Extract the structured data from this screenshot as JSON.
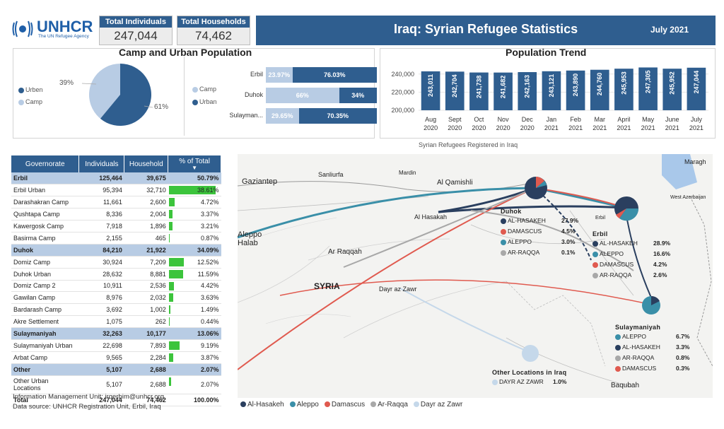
{
  "header": {
    "logo_text": "UNHCR",
    "logo_sub": "The UN Refugee Agency",
    "kpi": [
      {
        "label": "Total Individuals",
        "value": "247,044"
      },
      {
        "label": "Total Households",
        "value": "74,462"
      }
    ],
    "title": "Iraq: Syrian Refugee Statistics",
    "date": "July 2021"
  },
  "camp_urban": {
    "title": "Camp and Urban Population",
    "legend": [
      {
        "label": "Urben",
        "color": "#2f5e8f"
      },
      {
        "label": "Camp",
        "color": "#b8cce4"
      }
    ],
    "pie": {
      "camp_pct": 39,
      "urban_pct": 61,
      "camp_label": "39%",
      "urban_label": "61%"
    },
    "bars_legend": [
      {
        "label": "Camp",
        "color": "#b8cce4"
      },
      {
        "label": "Urban",
        "color": "#2f5e8f"
      }
    ],
    "bars": [
      {
        "name": "Erbil",
        "camp": 23.97,
        "urban": 76.03,
        "camp_label": "23.97%",
        "urban_label": "76.03%"
      },
      {
        "name": "Duhok",
        "camp": 66,
        "urban": 34,
        "camp_label": "66%",
        "urban_label": "34%"
      },
      {
        "name": "Sulayman...",
        "camp": 29.65,
        "urban": 70.35,
        "camp_label": "29.65%",
        "urban_label": "70.35%"
      }
    ]
  },
  "chart_data": {
    "type": "bar",
    "title": "Population Trend",
    "xlabel": "",
    "ylabel": "",
    "ylim": [
      200000,
      250000
    ],
    "yticks": [
      "200,000",
      "220,000",
      "240,000"
    ],
    "categories": [
      [
        "Aug",
        "2020"
      ],
      [
        "Sept",
        "2020"
      ],
      [
        "Oct",
        "2020"
      ],
      [
        "Nov",
        "2020"
      ],
      [
        "Dec",
        "2020"
      ],
      [
        "Jan",
        "2021"
      ],
      [
        "Feb",
        "2021"
      ],
      [
        "Mar",
        "2021"
      ],
      [
        "April",
        "2021"
      ],
      [
        "May",
        "2021"
      ],
      [
        "June",
        "2021"
      ],
      [
        "July",
        "2021"
      ]
    ],
    "values": [
      243011,
      242704,
      241738,
      241682,
      242163,
      243121,
      243890,
      244760,
      245953,
      247305,
      245952,
      247044
    ],
    "value_labels": [
      "243,011",
      "242,704",
      "241,738",
      "241,682",
      "242,163",
      "243,121",
      "243,890",
      "244,760",
      "245,953",
      "247,305",
      "245,952",
      "247,044"
    ],
    "color": "#2f5e8f"
  },
  "table": {
    "headers": [
      "Governorate",
      "Individuals",
      "Household",
      "% of Total"
    ],
    "rows": [
      {
        "type": "grp",
        "name": "Erbil",
        "ind": "125,464",
        "hh": "39,675",
        "pct": "50.79%",
        "val": 50.79
      },
      {
        "type": "row",
        "name": "Erbil Urban",
        "ind": "95,394",
        "hh": "32,710",
        "pct": "38.61%",
        "val": 38.61
      },
      {
        "type": "row",
        "name": "Darashakran Camp",
        "ind": "11,661",
        "hh": "2,600",
        "pct": "4.72%",
        "val": 4.72
      },
      {
        "type": "row",
        "name": "Qushtapa Camp",
        "ind": "8,336",
        "hh": "2,004",
        "pct": "3.37%",
        "val": 3.37
      },
      {
        "type": "row",
        "name": "Kawergosk Camp",
        "ind": "7,918",
        "hh": "1,896",
        "pct": "3.21%",
        "val": 3.21
      },
      {
        "type": "row",
        "name": "Basirma Camp",
        "ind": "2,155",
        "hh": "465",
        "pct": "0.87%",
        "val": 0.87
      },
      {
        "type": "grp",
        "name": "Duhok",
        "ind": "84,210",
        "hh": "21,922",
        "pct": "34.09%",
        "val": 34.09
      },
      {
        "type": "row",
        "name": "Domiz Camp",
        "ind": "30,924",
        "hh": "7,209",
        "pct": "12.52%",
        "val": 12.52
      },
      {
        "type": "row",
        "name": "Duhok Urban",
        "ind": "28,632",
        "hh": "8,881",
        "pct": "11.59%",
        "val": 11.59
      },
      {
        "type": "row",
        "name": "Domiz Camp 2",
        "ind": "10,911",
        "hh": "2,536",
        "pct": "4.42%",
        "val": 4.42
      },
      {
        "type": "row",
        "name": "Gawilan Camp",
        "ind": "8,976",
        "hh": "2,032",
        "pct": "3.63%",
        "val": 3.63
      },
      {
        "type": "row",
        "name": "Bardarash Camp",
        "ind": "3,692",
        "hh": "1,002",
        "pct": "1.49%",
        "val": 1.49
      },
      {
        "type": "row",
        "name": "Akre Settlement",
        "ind": "1,075",
        "hh": "262",
        "pct": "0.44%",
        "val": 0.44
      },
      {
        "type": "grp",
        "name": "Sulaymaniyah",
        "ind": "32,263",
        "hh": "10,177",
        "pct": "13.06%",
        "val": 13.06
      },
      {
        "type": "row",
        "name": "Sulaymaniyah Urban",
        "ind": "22,698",
        "hh": "7,893",
        "pct": "9.19%",
        "val": 9.19
      },
      {
        "type": "row",
        "name": "Arbat Camp",
        "ind": "9,565",
        "hh": "2,284",
        "pct": "3.87%",
        "val": 3.87
      },
      {
        "type": "grp",
        "name": "Other",
        "ind": "5,107",
        "hh": "2,688",
        "pct": "2.07%",
        "val": 2.07
      },
      {
        "type": "row2",
        "name": "Other Urban Locations",
        "ind": "5,107",
        "hh": "2,688",
        "pct": "2.07%",
        "val": 2.07
      },
      {
        "type": "tot",
        "name": "Total",
        "ind": "247,044",
        "hh": "74,462",
        "pct": "100.00%",
        "val": 0
      }
    ]
  },
  "footer": {
    "contact": "Information Management Unit: irqerbim@unhcr.org",
    "source": "Data source: UNHCR Registration Unit, Erbil, Iraq"
  },
  "map": {
    "caption": "Syrian Refugees Registered in Iraq",
    "place_labels": [
      "Gaziantep",
      "Sanliurfa",
      "Mardin",
      "Al Qamishli",
      "Aleppo Halab",
      "Al Hasakah",
      "Ar Raqqah",
      "SYRIA",
      "Dayr az Zawr",
      "Baqubah",
      "Maragh",
      "West Azerbaijan",
      "Erbil"
    ],
    "colors": {
      "Al-Hasakeh": "#2a3f5f",
      "Aleppo": "#3a8fa8",
      "Damascus": "#e05a4f",
      "Ar-Raqqa": "#a8a8a8",
      "Dayr az Zawr": "#c5d8ea"
    },
    "panels": [
      {
        "title": "Duhok",
        "items": [
          {
            "label": "AL-HASAKEH",
            "value": "27.9%",
            "color": "#2a3f5f"
          },
          {
            "label": "DAMASCUS",
            "value": "4.5%",
            "color": "#e05a4f"
          },
          {
            "label": "ALEPPO",
            "value": "3.0%",
            "color": "#3a8fa8"
          },
          {
            "label": "AR-RAQQA",
            "value": "0.1%",
            "color": "#a8a8a8"
          }
        ]
      },
      {
        "title": "Erbil",
        "items": [
          {
            "label": "AL-HASAKEH",
            "value": "28.9%",
            "color": "#2a3f5f"
          },
          {
            "label": "ALEPPO",
            "value": "16.6%",
            "color": "#3a8fa8"
          },
          {
            "label": "DAMASCUS",
            "value": "4.2%",
            "color": "#e05a4f"
          },
          {
            "label": "AR-RAQQA",
            "value": "2.6%",
            "color": "#a8a8a8"
          }
        ]
      },
      {
        "title": "Sulaymaniyah",
        "items": [
          {
            "label": "ALEPPO",
            "value": "6.7%",
            "color": "#3a8fa8"
          },
          {
            "label": "AL-HASAKEH",
            "value": "3.3%",
            "color": "#2a3f5f"
          },
          {
            "label": "AR-RAQQA",
            "value": "0.8%",
            "color": "#a8a8a8"
          },
          {
            "label": "DAMASCUS",
            "value": "0.3%",
            "color": "#e05a4f"
          }
        ]
      },
      {
        "title": "Other Locations in Iraq",
        "items": [
          {
            "label": "DAYR AZ ZAWR",
            "value": "1.0%",
            "color": "#c5d8ea"
          }
        ]
      }
    ],
    "legend": [
      {
        "label": "Al-Hasakeh",
        "color": "#2a3f5f"
      },
      {
        "label": "Aleppo",
        "color": "#3a8fa8"
      },
      {
        "label": "Damascus",
        "color": "#e05a4f"
      },
      {
        "label": "Ar-Raqqa",
        "color": "#a8a8a8"
      },
      {
        "label": "Dayr az Zawr",
        "color": "#c5d8ea"
      }
    ]
  }
}
